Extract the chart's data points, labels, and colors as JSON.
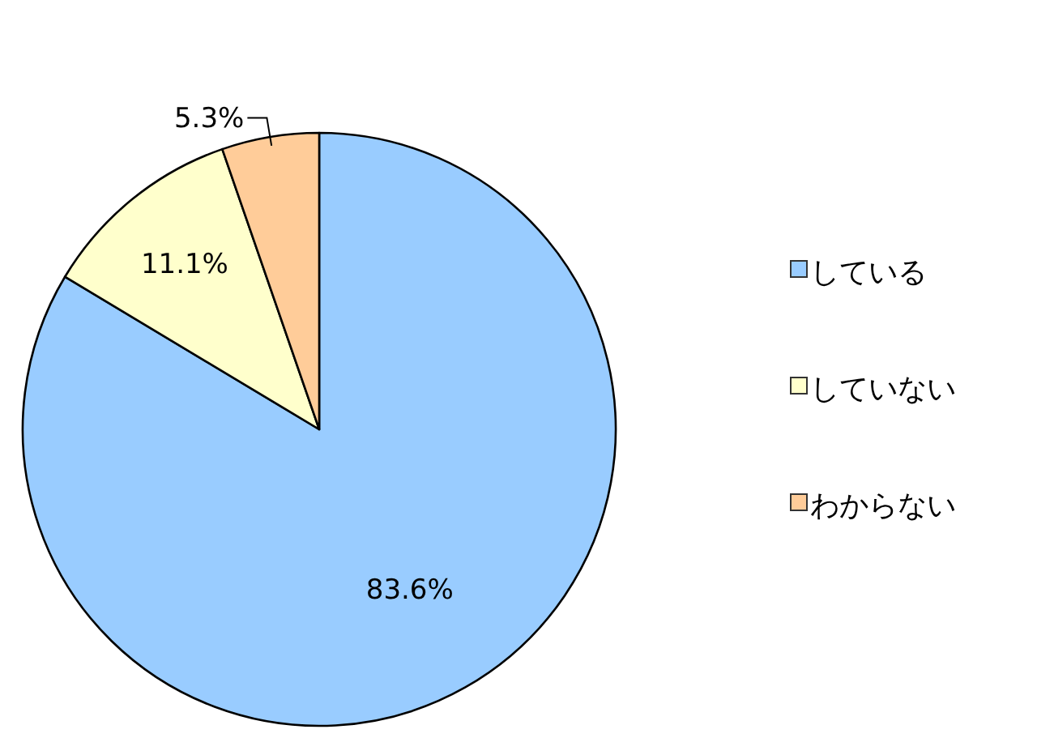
{
  "chart_data": {
    "type": "pie",
    "categories": [
      "している",
      "していない",
      "わからない"
    ],
    "values": [
      83.6,
      11.1,
      5.3
    ],
    "colors": [
      "#99ccff",
      "#ffffcc",
      "#ffcc99"
    ],
    "value_labels": [
      "83.6%",
      "11.1%",
      "5.3%"
    ],
    "legend": "right"
  }
}
